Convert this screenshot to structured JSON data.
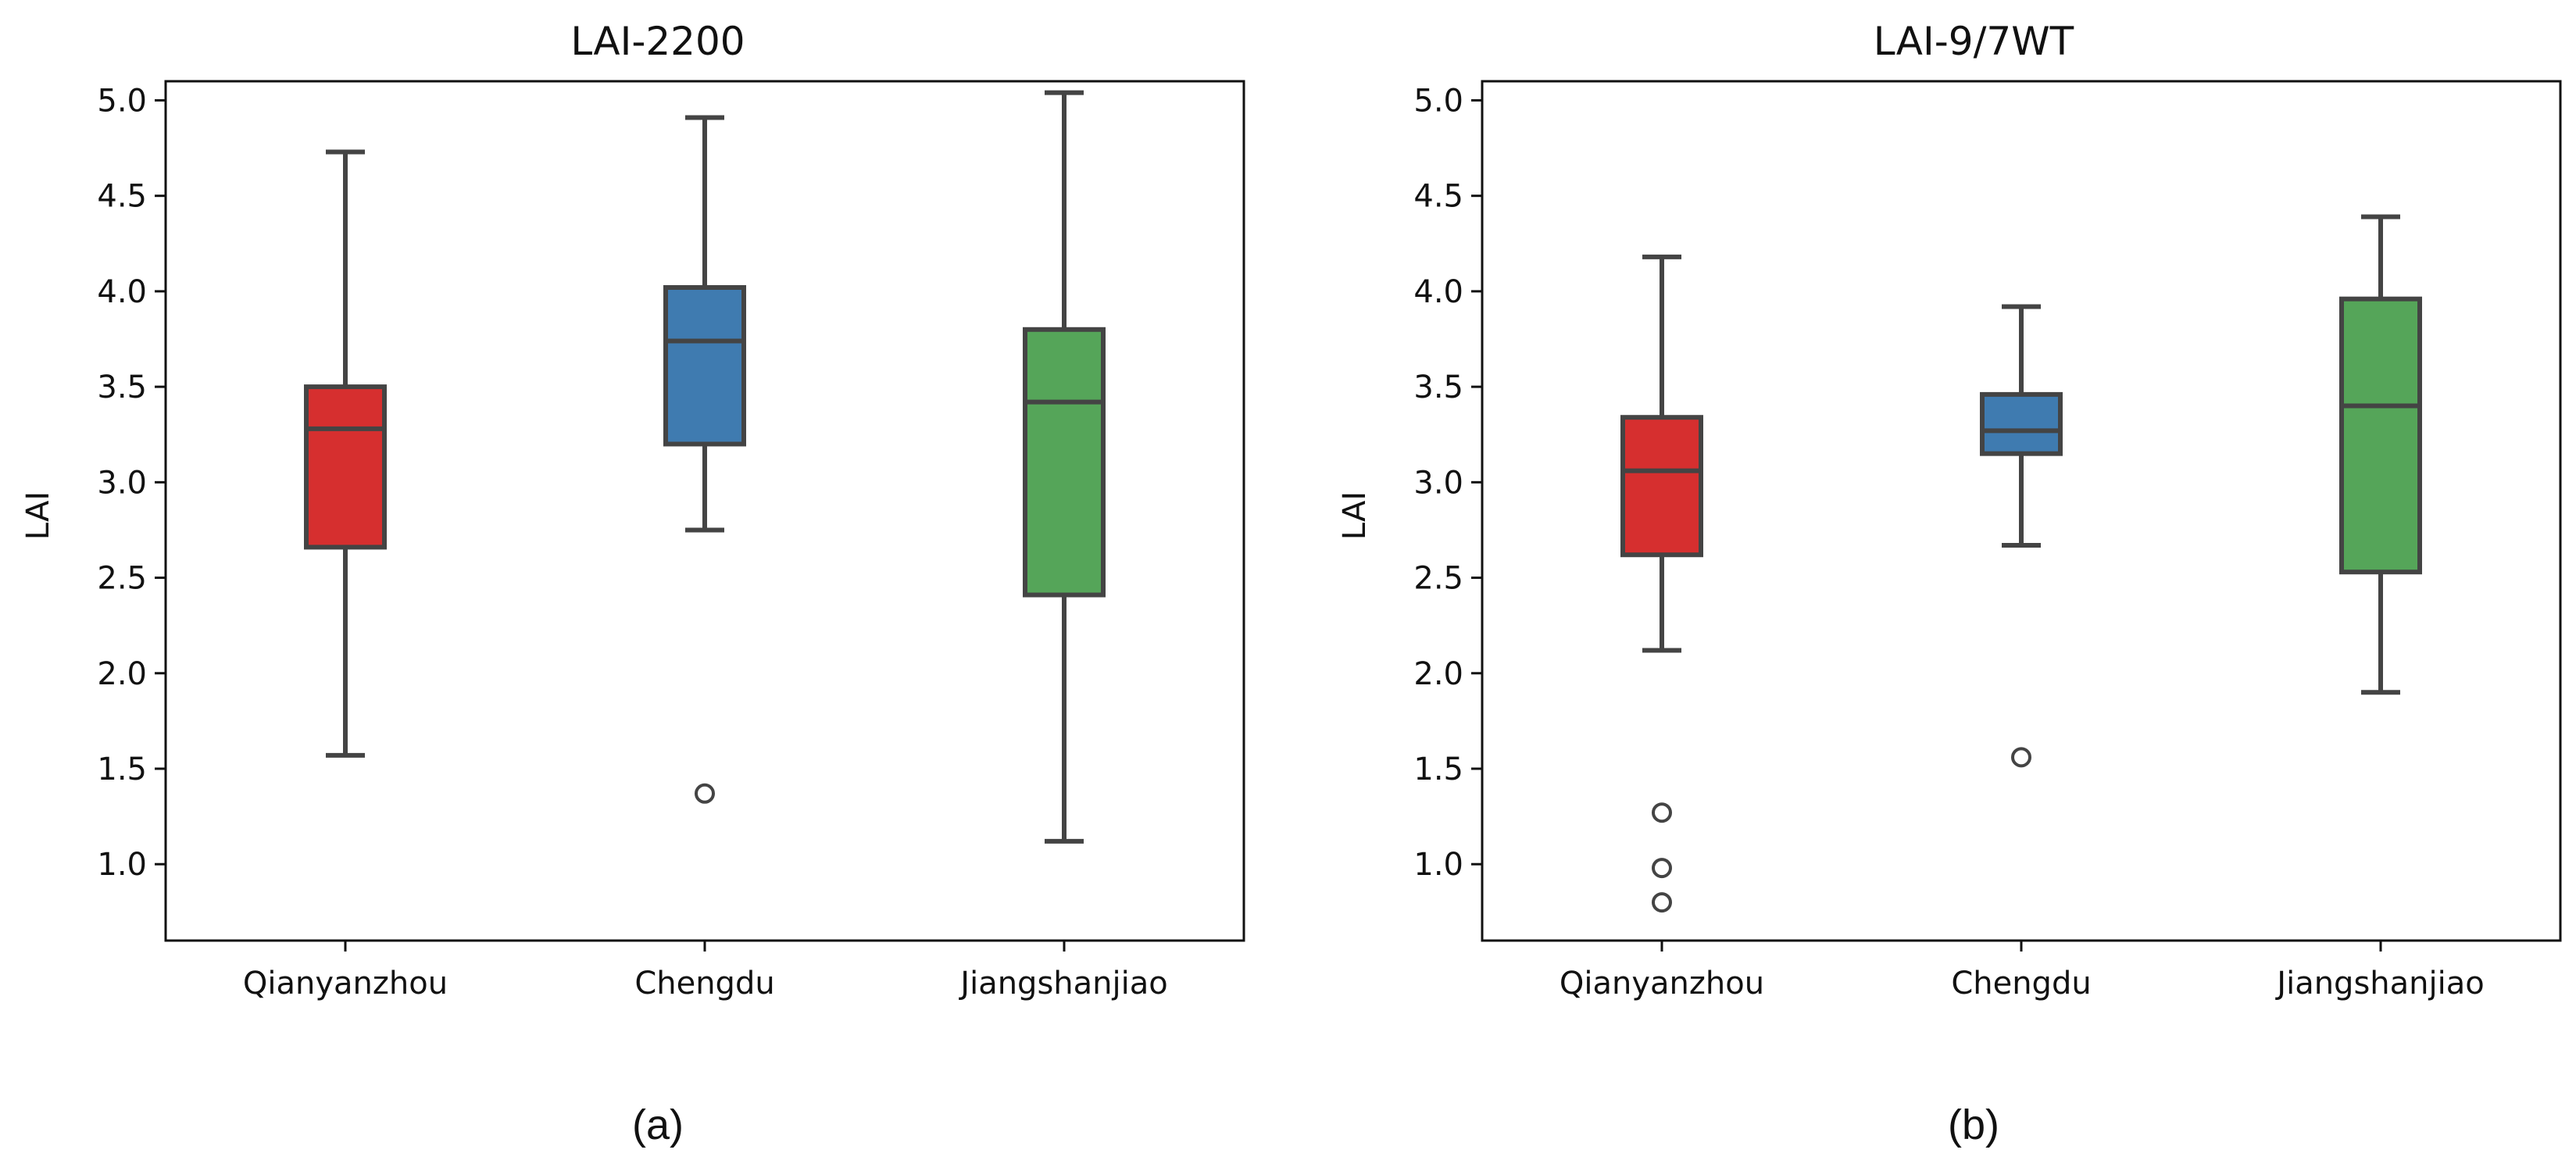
{
  "chart_data": [
    {
      "type": "boxplot",
      "title": "LAI-2200",
      "xlabel": "",
      "ylabel": "LAI",
      "caption": "(a)",
      "ylim": [
        0.6,
        5.1
      ],
      "yticks": [
        "1.0",
        "1.5",
        "2.0",
        "2.5",
        "3.0",
        "3.5",
        "4.0",
        "4.5",
        "5.0"
      ],
      "categories": [
        "Qianyanzhou",
        "Chengdu",
        "Jiangshanjiao"
      ],
      "boxes": [
        {
          "category": "Qianyanzhou",
          "color": "#d62f2f",
          "min": 1.57,
          "q1": 2.66,
          "median": 3.28,
          "q3": 3.5,
          "max": 4.73,
          "outliers": []
        },
        {
          "category": "Chengdu",
          "color": "#3f7bb0",
          "min": 2.75,
          "q1": 3.2,
          "median": 3.74,
          "q3": 4.02,
          "max": 4.91,
          "outliers": [
            1.37
          ]
        },
        {
          "category": "Jiangshanjiao",
          "color": "#55a559",
          "min": 1.12,
          "q1": 2.41,
          "median": 3.42,
          "q3": 3.8,
          "max": 5.04,
          "outliers": []
        }
      ]
    },
    {
      "type": "boxplot",
      "title": "LAI-9/7WT",
      "xlabel": "",
      "ylabel": "LAI",
      "caption": "(b)",
      "ylim": [
        0.6,
        5.1
      ],
      "yticks": [
        "1.0",
        "1.5",
        "2.0",
        "2.5",
        "3.0",
        "3.5",
        "4.0",
        "4.5",
        "5.0"
      ],
      "categories": [
        "Qianyanzhou",
        "Chengdu",
        "Jiangshanjiao"
      ],
      "boxes": [
        {
          "category": "Qianyanzhou",
          "color": "#d62f2f",
          "min": 2.12,
          "q1": 2.62,
          "median": 3.06,
          "q3": 3.34,
          "max": 4.18,
          "outliers": [
            1.27,
            0.98,
            0.8
          ]
        },
        {
          "category": "Chengdu",
          "color": "#3f7bb0",
          "min": 2.67,
          "q1": 3.15,
          "median": 3.27,
          "q3": 3.46,
          "max": 3.92,
          "outliers": [
            1.56
          ]
        },
        {
          "category": "Jiangshanjiao",
          "color": "#55a559",
          "min": 1.9,
          "q1": 2.53,
          "median": 3.4,
          "q3": 3.96,
          "max": 4.39,
          "outliers": []
        }
      ]
    }
  ]
}
